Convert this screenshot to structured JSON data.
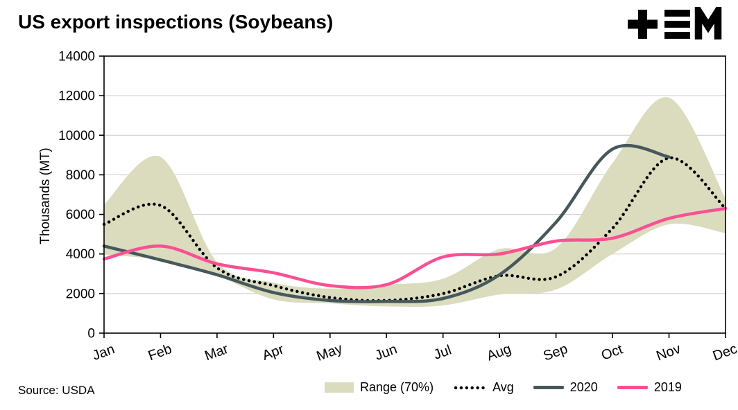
{
  "header": {
    "title": "US export inspections (Soybeans)",
    "logo_name": "TEM"
  },
  "footer": {
    "source": "Source: USDA"
  },
  "chart_data": {
    "type": "line",
    "title": "US export inspections (Soybeans)",
    "xlabel": "",
    "ylabel": "Thousands (MT)",
    "ylim": [
      0,
      14000
    ],
    "ytick_step": 2000,
    "grid": true,
    "legend_position": "bottom",
    "categories": [
      "Jan",
      "Feb",
      "Mar",
      "Apr",
      "May",
      "Jun",
      "Jul",
      "Aug",
      "Sep",
      "Oct",
      "Nov",
      "Dec"
    ],
    "band": {
      "name": "Range (70%)",
      "color": "#dbdcbe",
      "upper": [
        6500,
        8900,
        3600,
        2550,
        2250,
        2450,
        2750,
        4250,
        4300,
        8600,
        11900,
        6800
      ],
      "lower": [
        3950,
        3700,
        2900,
        1700,
        1500,
        1350,
        1400,
        1950,
        2200,
        4000,
        5500,
        5050
      ]
    },
    "series": [
      {
        "name": "Avg",
        "style": "dotted",
        "color": "#000000",
        "values": [
          5500,
          6450,
          3300,
          2400,
          1800,
          1650,
          2000,
          2900,
          2850,
          5300,
          8850,
          6300
        ]
      },
      {
        "name": "2020",
        "style": "solid",
        "color": "#46585c",
        "values": [
          4400,
          3700,
          2950,
          2050,
          1650,
          1600,
          1750,
          2950,
          5600,
          9300,
          8900,
          null
        ]
      },
      {
        "name": "2019",
        "style": "solid",
        "color": "#fb4f93",
        "values": [
          3750,
          4400,
          3500,
          3050,
          2400,
          2450,
          3850,
          4000,
          4650,
          4800,
          5800,
          6300
        ]
      }
    ]
  }
}
